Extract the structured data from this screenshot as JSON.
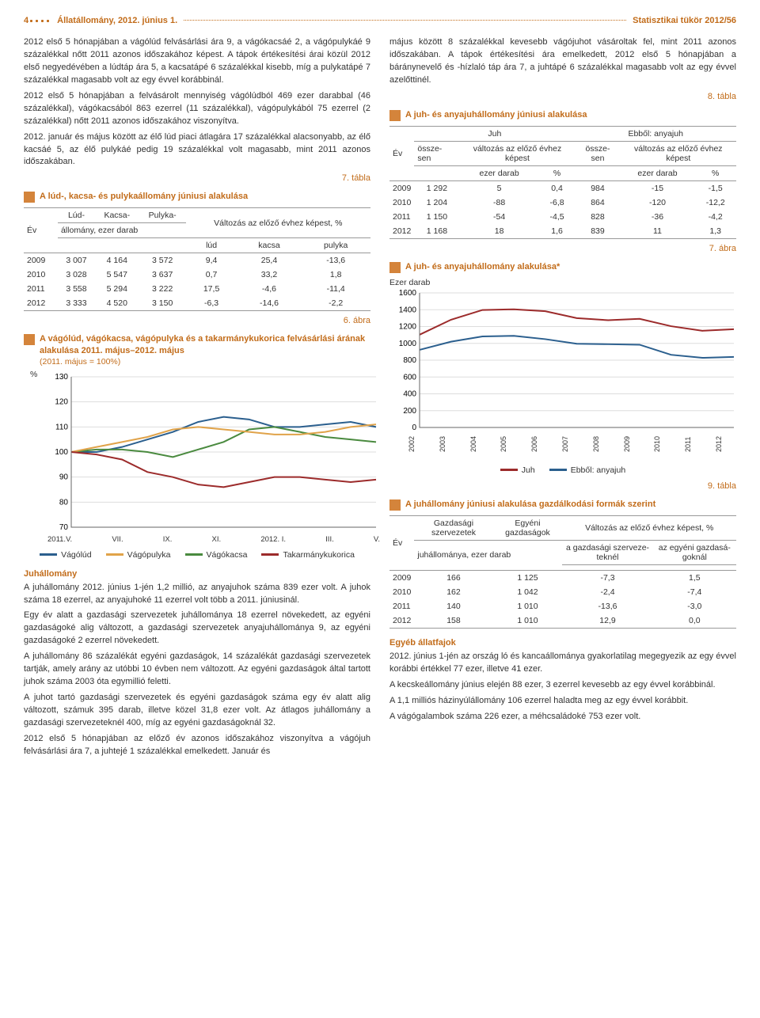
{
  "header": {
    "page_num": "4",
    "left_label": "Állatállomány, 2012. június 1.",
    "right_label": "Statisztikai tükör 2012/56"
  },
  "col_left": {
    "p1": "2012 első 5 hónapjában a vágólúd felvásárlási ára 9, a vágókacsáé 2, a vágópulykáé 9 százalékkal nőtt 2011 azonos időszakához képest. A tápok értékesítési árai közül 2012 első negyedévében a lúdtáp ára 5, a kacsatápé 6 százalékkal kisebb, míg a pulykatápé 7 százalékkal magasabb volt az egy évvel korábbinál.",
    "p2": "2012 első 5 hónapjában a felvásárolt mennyiség vágólúdból 469 ezer darabbal (46 százalékkal), vágókacsából 863 ezerrel (11 százalékkal), vágópulykából 75 ezerrel (2 százalékkal) nőtt 2011 azonos időszakához viszonyítva.",
    "p3": "2012. január és május között az élő lúd piaci átlagára 17 százalékkal alacsonyabb, az élő kacsáé 5, az élő pulykáé pedig 19 százalékkal volt magasabb, mint 2011 azonos időszakában.",
    "tbl7_label": "7. tábla",
    "tbl7_title": "A lúd-, kacsa- és pulykaállomány júniusi alakulása",
    "tbl7": {
      "h_ev": "Év",
      "h_lud": "Lúd-",
      "h_kacsa": "Kacsa-",
      "h_pulyka": "Pulyka-",
      "h_allomany": "állomány, ezer darab",
      "h_valtozas": "Változás az előző évhez képest, %",
      "h_lud2": "lúd",
      "h_kacsa2": "kacsa",
      "h_pulyka2": "pulyka",
      "rows": [
        [
          "2009",
          "3 007",
          "4 164",
          "3 572",
          "9,4",
          "25,4",
          "-13,6"
        ],
        [
          "2010",
          "3 028",
          "5 547",
          "3 637",
          "0,7",
          "33,2",
          "1,8"
        ],
        [
          "2011",
          "3 558",
          "5 294",
          "3 222",
          "17,5",
          "-4,6",
          "-11,4"
        ],
        [
          "2012",
          "3 333",
          "4 520",
          "3 150",
          "-6,3",
          "-14,6",
          "-2,2"
        ]
      ]
    },
    "fig6_label": "6. ábra",
    "fig6_title": "A vágólúd, vágókacsa, vágópulyka és a takarmánykukorica felvásárlási árának alakulása 2011. május–2012. május",
    "fig6_sub": "(2011. május = 100%)",
    "fig6": {
      "ylabel": "%",
      "ymin": 70,
      "ymax": 130,
      "ystep": 10,
      "xticks": [
        "2011.V.",
        "VII.",
        "IX.",
        "XI.",
        "2012. I.",
        "III.",
        "V."
      ],
      "colors": {
        "vagolud": "#2b5f8e",
        "vagokacsa": "#4a8a3f",
        "vagopulyka": "#e0a34a",
        "takarmany": "#9c2b2b"
      },
      "series": {
        "vagolud": [
          100,
          100,
          102,
          105,
          108,
          112,
          114,
          113,
          110,
          110,
          111,
          112,
          110
        ],
        "vagokacsa": [
          100,
          101,
          101,
          100,
          98,
          101,
          104,
          109,
          110,
          108,
          106,
          105,
          104
        ],
        "vagopulyka": [
          100,
          102,
          104,
          106,
          109,
          110,
          109,
          108,
          107,
          107,
          108,
          110,
          111
        ],
        "takarmany": [
          100,
          99,
          97,
          92,
          90,
          87,
          86,
          88,
          90,
          90,
          89,
          88,
          89
        ]
      },
      "legend": {
        "vagolud": "Vágólúd",
        "vagokacsa": "Vágókacsa",
        "vagopulyka": "Vágópulyka",
        "takarmany": "Takarmánykukorica"
      }
    },
    "juh_title": "Juhállomány",
    "juh_p1": "A juhállomány 2012. június 1-jén 1,2 millió, az anyajuhok száma 839 ezer volt. A juhok száma 18 ezerrel, az anyajuhoké 11 ezerrel volt több a 2011. júniusinál.",
    "juh_p2": "Egy év alatt a gazdasági szervezetek juhállománya 18 ezerrel növekedett, az egyéni gazdaságoké alig változott, a gazdasági szervezetek anyajuhállománya 9, az egyéni gazdaságoké 2 ezerrel növekedett.",
    "juh_p3": "A juhállomány 86 százalékát egyéni gazdaságok, 14 százalékát gazdasági szervezetek tartják, amely arány az utóbbi 10 évben nem változott. Az egyéni gazdaságok által tartott juhok száma 2003 óta egymillió feletti.",
    "juh_p4": "A juhot tartó gazdasági szervezetek és egyéni gazdaságok száma egy év alatt alig változott, számuk 395 darab, illetve közel 31,8 ezer volt. Az átlagos juhállomány a gazdasági szervezeteknél 400, míg az egyéni gazdaságoknál 32.",
    "juh_p5": "2012 első 5 hónapjában az előző év azonos időszakához viszonyítva a vágójuh felvásárlási ára 7, a juhtejé 1 százalékkal emelkedett. Január és"
  },
  "col_right": {
    "p1": "május között 8 százalékkal kevesebb vágójuhot vásároltak fel, mint 2011 azonos időszakában. A tápok értékesítési ára emelkedett, 2012 első 5 hónapjában a báránynevelő és -hízlaló táp ára 7, a juhtápé 6 százalékkal magasabb volt az egy évvel azelőttinél.",
    "tbl8_label": "8. tábla",
    "tbl8_title": "A juh- és anyajuhállomány júniusi alakulása",
    "tbl8": {
      "h_ev": "Év",
      "h_juh": "Juh",
      "h_anyajuh": "Ebből: anyajuh",
      "h_osszesen": "össze-\nsen",
      "h_valtozas": "változás az előző évhez képest",
      "h_ezer": "ezer darab",
      "h_pct": "%",
      "rows": [
        [
          "2009",
          "1 292",
          "5",
          "0,4",
          "984",
          "-15",
          "-1,5"
        ],
        [
          "2010",
          "1 204",
          "-88",
          "-6,8",
          "864",
          "-120",
          "-12,2"
        ],
        [
          "2011",
          "1 150",
          "-54",
          "-4,5",
          "828",
          "-36",
          "-4,2"
        ],
        [
          "2012",
          "1 168",
          "18",
          "1,6",
          "839",
          "11",
          "1,3"
        ]
      ]
    },
    "fig7_label": "7. ábra",
    "fig7_title": "A juh- és anyajuhállomány alakulása*",
    "fig7": {
      "ylabel": "Ezer darab",
      "ymin": 0,
      "ymax": 1600,
      "ystep": 200,
      "xticks": [
        "2002",
        "2003",
        "2004",
        "2005",
        "2006",
        "2007",
        "2008",
        "2009",
        "2010",
        "2011",
        "2012"
      ],
      "colors": {
        "juh": "#9c2b2b",
        "anyajuh": "#2b5f8e"
      },
      "series": {
        "juh": [
          1103,
          1281,
          1397,
          1405,
          1382,
          1300,
          1275,
          1292,
          1204,
          1150,
          1168
        ],
        "anyajuh": [
          923,
          1020,
          1082,
          1089,
          1050,
          995,
          990,
          984,
          864,
          828,
          839
        ]
      },
      "legend": {
        "juh": "Juh",
        "anyajuh": "Ebből: anyajuh"
      }
    },
    "tbl9_label": "9. tábla",
    "tbl9_title": "A juhállomány júniusi alakulása gazdálkodási formák szerint",
    "tbl9": {
      "h_ev": "Év",
      "h_gsz": "Gazdasági szervezetek",
      "h_eg": "Egyéni gazdaságok",
      "h_valtozas": "Változás az előző évhez képest, %",
      "h_juhallomany": "juhállománya, ezer darab",
      "h_agsz": "a gazdasági szerveze-\nteknél",
      "h_aeg": "az egyéni gazdasá-\ngoknál",
      "rows": [
        [
          "2009",
          "166",
          "1 125",
          "-7,3",
          "1,5"
        ],
        [
          "2010",
          "162",
          "1 042",
          "-2,4",
          "-7,4"
        ],
        [
          "2011",
          "140",
          "1 010",
          "-13,6",
          "-3,0"
        ],
        [
          "2012",
          "158",
          "1 010",
          "12,9",
          "0,0"
        ]
      ]
    },
    "egyeb_title": "Egyéb állatfajok",
    "egyeb_p1": "2012. június 1-jén az ország ló és kancaállománya gyakorlatilag megegyezik az egy évvel korábbi értékkel 77 ezer, illetve 41 ezer.",
    "egyeb_p2": "A kecskeállomány június elején 88 ezer, 3 ezerrel kevesebb az egy évvel korábbinál.",
    "egyeb_p3": "A 1,1 milliós házinyúlállomány 106 ezerrel haladta meg az egy évvel korábbit.",
    "egyeb_p4": "A vágógalambok száma 226 ezer, a méhcsaládoké 753 ezer volt."
  }
}
